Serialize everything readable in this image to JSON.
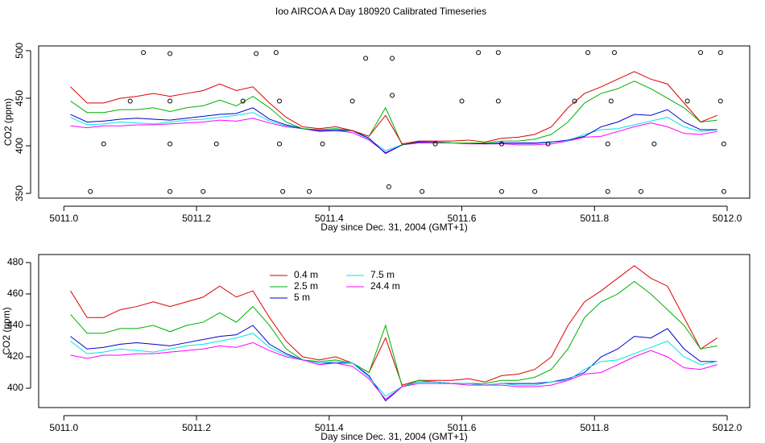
{
  "chart_data": [
    {
      "type": "line",
      "title": "Ioo AIRCOA A  Day 180920  Calibrated Timeseries",
      "x_label": "Day since Dec. 31, 2004 (GMT+1)",
      "y_label": "CO2 (ppm)",
      "xlim": [
        5010.962,
        5012.034
      ],
      "ylim": [
        345,
        505
      ],
      "xticks": [
        {
          "value": 5011,
          "label": "5011.0"
        },
        {
          "value": 5011.2,
          "label": "5011.2"
        },
        {
          "value": 5011.4,
          "label": "5011.4"
        },
        {
          "value": 5011.6,
          "label": "5011.6"
        },
        {
          "value": 5011.8,
          "label": "5011.8"
        },
        {
          "value": 5012,
          "label": "5012.0"
        }
      ],
      "yticks": [
        350,
        400,
        450,
        500
      ],
      "x": [
        5011.01,
        5011.035,
        5011.06,
        5011.085,
        5011.11,
        5011.135,
        5011.16,
        5011.185,
        5011.21,
        5011.235,
        5011.26,
        5011.285,
        5011.31,
        5011.335,
        5011.36,
        5011.385,
        5011.41,
        5011.435,
        5011.46,
        5011.485,
        5011.51,
        5011.535,
        5011.56,
        5011.585,
        5011.61,
        5011.635,
        5011.66,
        5011.685,
        5011.71,
        5011.735,
        5011.76,
        5011.785,
        5011.81,
        5011.835,
        5011.86,
        5011.885,
        5011.91,
        5011.935,
        5011.96,
        5011.985
      ],
      "series": [
        {
          "color": "#ff00ff",
          "values": [
            421,
            419,
            421,
            421,
            422,
            422,
            423,
            424,
            425,
            427,
            426,
            429,
            424,
            420,
            418,
            415,
            416,
            414,
            406,
            393,
            401,
            403,
            403,
            403,
            402,
            402,
            402,
            401,
            401,
            402,
            405,
            409,
            410,
            415,
            420,
            424,
            420,
            413,
            412,
            415
          ]
        },
        {
          "color": "#00e5e5",
          "values": [
            430,
            422,
            423,
            425,
            424,
            423,
            425,
            427,
            428,
            430,
            432,
            435,
            426,
            421,
            418,
            416,
            417,
            416,
            407,
            395,
            401,
            404,
            404,
            403,
            403,
            402,
            403,
            402,
            402,
            404,
            405,
            412,
            417,
            418,
            422,
            426,
            430,
            420,
            415,
            417
          ]
        },
        {
          "color": "#0000cd",
          "values": [
            433,
            425,
            426,
            428,
            429,
            428,
            427,
            429,
            431,
            433,
            434,
            440,
            428,
            422,
            418,
            416,
            416,
            416,
            408,
            392,
            401,
            404,
            404,
            403,
            403,
            402,
            403,
            403,
            403,
            404,
            406,
            410,
            420,
            425,
            433,
            432,
            438,
            425,
            417,
            417
          ]
        },
        {
          "color": "#00b000",
          "values": [
            447,
            435,
            435,
            438,
            438,
            440,
            436,
            440,
            442,
            448,
            442,
            452,
            440,
            425,
            418,
            417,
            418,
            416,
            410,
            440,
            401,
            405,
            404,
            403,
            403,
            403,
            405,
            405,
            407,
            412,
            425,
            445,
            455,
            460,
            468,
            460,
            450,
            440,
            425,
            427
          ]
        },
        {
          "color": "#dd0000",
          "values": [
            462,
            445,
            445,
            450,
            452,
            455,
            452,
            455,
            458,
            465,
            458,
            462,
            445,
            430,
            420,
            418,
            420,
            416,
            410,
            432,
            402,
            405,
            405,
            405,
            406,
            404,
            408,
            409,
            412,
            420,
            440,
            455,
            462,
            470,
            478,
            470,
            465,
            445,
            425,
            432
          ]
        }
      ],
      "markers": {
        "x": [
          5011.04,
          5011.06,
          5011.1,
          5011.12,
          5011.16,
          5011.16,
          5011.16,
          5011.16,
          5011.21,
          5011.23,
          5011.27,
          5011.29,
          5011.32,
          5011.325,
          5011.325,
          5011.33,
          5011.37,
          5011.39,
          5011.435,
          5011.455,
          5011.49,
          5011.495,
          5011.495,
          5011.54,
          5011.56,
          5011.6,
          5011.625,
          5011.655,
          5011.655,
          5011.66,
          5011.66,
          5011.71,
          5011.73,
          5011.77,
          5011.79,
          5011.82,
          5011.82,
          5011.825,
          5011.83,
          5011.87,
          5011.89,
          5011.94,
          5011.96,
          5011.99,
          5011.99,
          5011.995,
          5011.995
        ],
        "values": [
          352,
          402,
          447,
          498,
          352,
          402,
          447,
          497,
          352,
          402,
          447,
          497,
          498,
          447,
          402,
          352,
          352,
          402,
          447,
          492,
          357,
          453,
          492,
          352,
          402,
          447,
          498,
          498,
          447,
          402,
          352,
          352,
          402,
          447,
          498,
          352,
          402,
          447,
          498,
          352,
          402,
          447,
          498,
          498,
          447,
          402,
          352
        ]
      }
    },
    {
      "type": "line",
      "x_label": "Day since Dec. 31, 2004 (GMT+1)",
      "y_label": "CO2 (ppm)",
      "xlim": [
        5010.962,
        5012.034
      ],
      "ylim": [
        387.7,
        485.1
      ],
      "xticks": [
        {
          "value": 5011,
          "label": "5011.0"
        },
        {
          "value": 5011.2,
          "label": "5011.2"
        },
        {
          "value": 5011.4,
          "label": "5011.4"
        },
        {
          "value": 5011.6,
          "label": "5011.6"
        },
        {
          "value": 5011.8,
          "label": "5011.8"
        },
        {
          "value": 5012,
          "label": "5012.0"
        }
      ],
      "yticks": [
        400,
        420,
        440,
        460,
        480
      ],
      "x": [
        5011.01,
        5011.035,
        5011.06,
        5011.085,
        5011.11,
        5011.135,
        5011.16,
        5011.185,
        5011.21,
        5011.235,
        5011.26,
        5011.285,
        5011.31,
        5011.335,
        5011.36,
        5011.385,
        5011.41,
        5011.435,
        5011.46,
        5011.485,
        5011.51,
        5011.535,
        5011.56,
        5011.585,
        5011.61,
        5011.635,
        5011.66,
        5011.685,
        5011.71,
        5011.735,
        5011.76,
        5011.785,
        5011.81,
        5011.835,
        5011.86,
        5011.885,
        5011.91,
        5011.935,
        5011.96,
        5011.985
      ],
      "legend": "top",
      "series": [
        {
          "name": "0.4 m",
          "color": "#dd0000",
          "values": [
            462,
            445,
            445,
            450,
            452,
            455,
            452,
            455,
            458,
            465,
            458,
            462,
            445,
            430,
            420,
            418,
            420,
            416,
            410,
            432,
            402,
            405,
            405,
            405,
            406,
            404,
            408,
            409,
            412,
            420,
            440,
            455,
            462,
            470,
            478,
            470,
            465,
            445,
            425,
            432
          ]
        },
        {
          "name": "2.5 m",
          "color": "#00b000",
          "values": [
            447,
            435,
            435,
            438,
            438,
            440,
            436,
            440,
            442,
            448,
            442,
            452,
            440,
            425,
            418,
            417,
            418,
            416,
            410,
            440,
            401,
            405,
            404,
            403,
            403,
            403,
            405,
            405,
            407,
            412,
            425,
            445,
            455,
            460,
            468,
            460,
            450,
            440,
            425,
            427
          ]
        },
        {
          "name": "5 m",
          "color": "#0000cd",
          "values": [
            433,
            425,
            426,
            428,
            429,
            428,
            427,
            429,
            431,
            433,
            434,
            440,
            428,
            422,
            418,
            416,
            416,
            416,
            408,
            392,
            401,
            404,
            404,
            403,
            403,
            402,
            403,
            403,
            403,
            404,
            406,
            410,
            420,
            425,
            433,
            432,
            438,
            425,
            417,
            417
          ]
        },
        {
          "name": "7.5 m",
          "color": "#00e5e5",
          "values": [
            430,
            422,
            423,
            425,
            424,
            423,
            425,
            427,
            428,
            430,
            432,
            435,
            426,
            421,
            418,
            416,
            417,
            416,
            407,
            395,
            401,
            404,
            404,
            403,
            403,
            402,
            403,
            402,
            402,
            404,
            405,
            412,
            417,
            418,
            422,
            426,
            430,
            420,
            415,
            417
          ]
        },
        {
          "name": "24.4 m",
          "color": "#ff00ff",
          "values": [
            421,
            419,
            421,
            421,
            422,
            422,
            423,
            424,
            425,
            427,
            426,
            429,
            424,
            420,
            418,
            415,
            416,
            414,
            406,
            393,
            401,
            403,
            403,
            403,
            402,
            402,
            402,
            401,
            401,
            402,
            405,
            409,
            410,
            415,
            420,
            424,
            420,
            413,
            412,
            415
          ]
        }
      ]
    }
  ]
}
